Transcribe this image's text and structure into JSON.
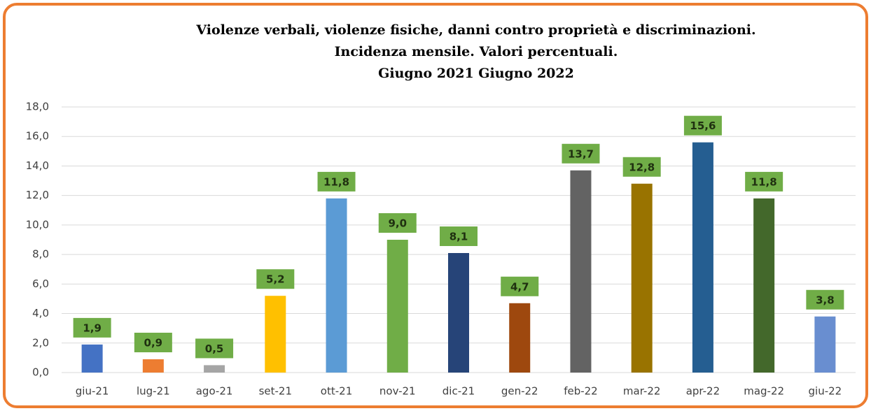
{
  "chart_data": {
    "type": "bar",
    "title": [
      "Violenze verbali, violenze fisiche, danni contro proprietà e discriminazioni.",
      "Incidenza mensile. Valori percentuali.",
      "Giugno 2021 Giugno 2022"
    ],
    "categories": [
      "giu-21",
      "lug-21",
      "ago-21",
      "set-21",
      "ott-21",
      "nov-21",
      "dic-21",
      "gen-22",
      "feb-22",
      "mar-22",
      "apr-22",
      "mag-22",
      "giu-22"
    ],
    "values": [
      1.9,
      0.9,
      0.5,
      5.2,
      11.8,
      9.0,
      8.1,
      4.7,
      13.7,
      12.8,
      15.6,
      11.8,
      3.8
    ],
    "value_labels": [
      "1,9",
      "0,9",
      "0,5",
      "5,2",
      "11,8",
      "9,0",
      "8,1",
      "4,7",
      "13,7",
      "12,8",
      "15,6",
      "11,8",
      "3,8"
    ],
    "colors": [
      "#4472c4",
      "#ed7d31",
      "#a5a5a5",
      "#ffc000",
      "#5b9bd5",
      "#70ad47",
      "#264478",
      "#9e480e",
      "#636363",
      "#997300",
      "#255e91",
      "#43682b",
      "#698ed0"
    ],
    "label_box_color": "#70ad47",
    "ylim": [
      0,
      18
    ],
    "yticks": [
      {
        "value": 0,
        "label": "0,0"
      },
      {
        "value": 2,
        "label": "2,0"
      },
      {
        "value": 4,
        "label": "4,0"
      },
      {
        "value": 6,
        "label": "6,0"
      },
      {
        "value": 8,
        "label": "8,0"
      },
      {
        "value": 10,
        "label": "10,0"
      },
      {
        "value": 12,
        "label": "12,0"
      },
      {
        "value": 14,
        "label": "14,0"
      },
      {
        "value": 16,
        "label": "16,0"
      },
      {
        "value": 18,
        "label": "18,0"
      }
    ],
    "grid": true
  }
}
